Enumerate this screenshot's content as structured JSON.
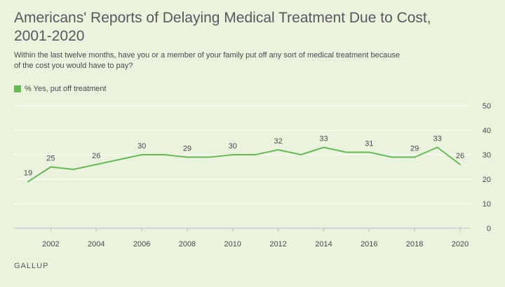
{
  "title": "Americans' Reports of Delaying Medical Treatment Due to Cost, 2001-2020",
  "subtitle": "Within the last twelve months, have you or a member of your family put off any sort of medical treatment because of the cost you would have to pay?",
  "source": "GALLUP",
  "colors": {
    "background": "#ebf3de",
    "series": "#66bb55",
    "grid": "#ffffff",
    "text": "#4a4a4a"
  },
  "chart_data": {
    "type": "line",
    "x": [
      2001,
      2002,
      2003,
      2004,
      2005,
      2006,
      2007,
      2008,
      2009,
      2010,
      2011,
      2012,
      2013,
      2014,
      2015,
      2016,
      2017,
      2018,
      2019,
      2020
    ],
    "series": [
      {
        "name": "% Yes, put off treatment",
        "values": [
          19,
          25,
          24,
          26,
          28,
          30,
          30,
          29,
          29,
          30,
          30,
          32,
          30,
          33,
          31,
          31,
          29,
          29,
          33,
          26
        ]
      }
    ],
    "data_labels": [
      {
        "x": 2001,
        "label": "19"
      },
      {
        "x": 2002,
        "label": "25"
      },
      {
        "x": 2004,
        "label": "26"
      },
      {
        "x": 2006,
        "label": "30"
      },
      {
        "x": 2008,
        "label": "29"
      },
      {
        "x": 2010,
        "label": "30"
      },
      {
        "x": 2012,
        "label": "32"
      },
      {
        "x": 2014,
        "label": "33"
      },
      {
        "x": 2016,
        "label": "31"
      },
      {
        "x": 2018,
        "label": "29"
      },
      {
        "x": 2019,
        "label": "33"
      },
      {
        "x": 2020,
        "label": "26"
      }
    ],
    "x_ticks": [
      "2002",
      "2004",
      "2006",
      "2008",
      "2010",
      "2012",
      "2014",
      "2016",
      "2018",
      "2020"
    ],
    "y_ticks": [
      "0",
      "10",
      "20",
      "30",
      "40",
      "50"
    ],
    "xlim": [
      2001,
      2020
    ],
    "ylim": [
      0,
      50
    ],
    "grid": true,
    "legend_position": "top-left",
    "y_axis_side": "right"
  }
}
